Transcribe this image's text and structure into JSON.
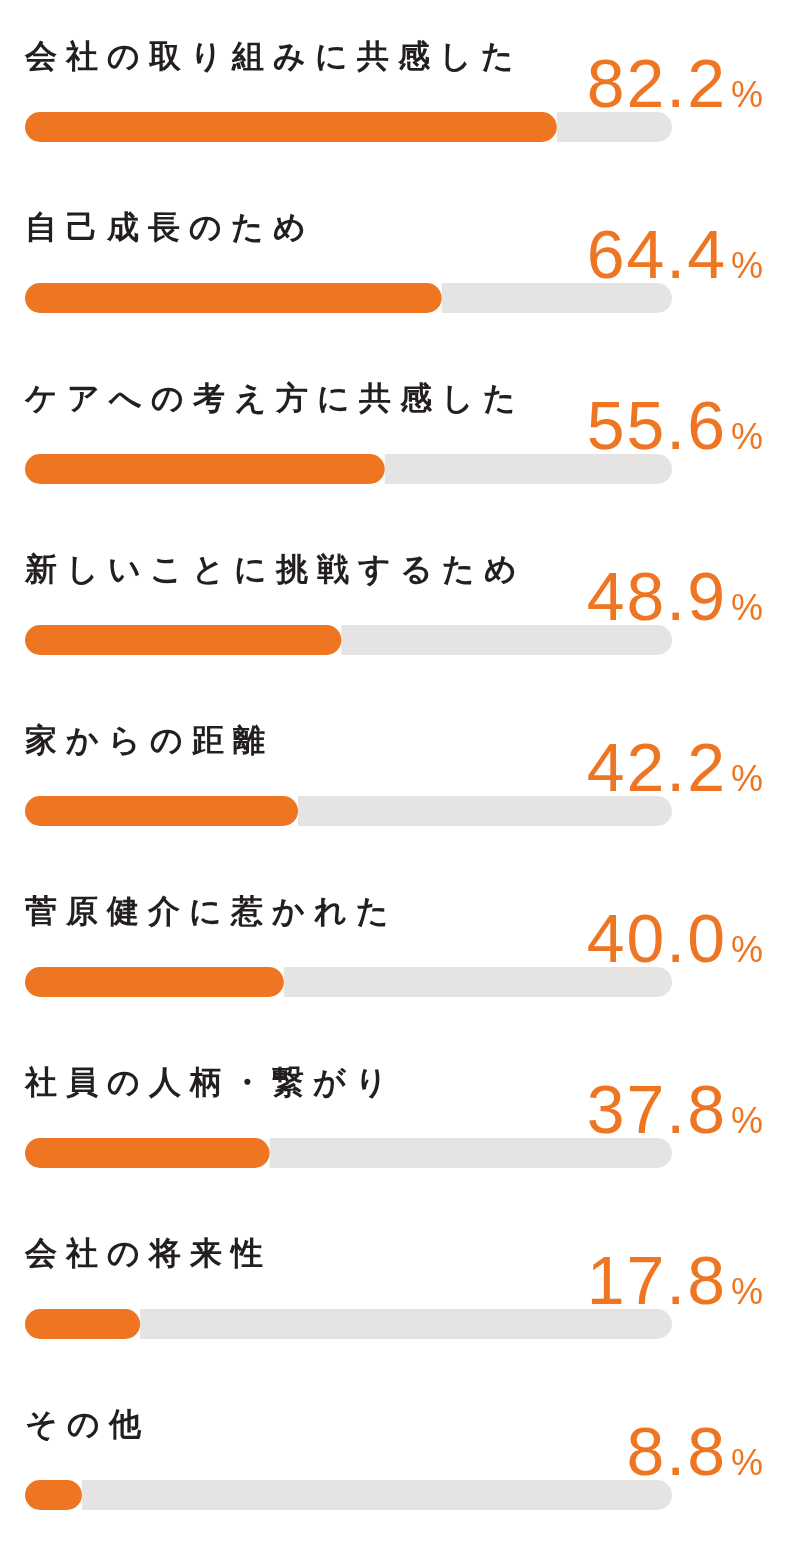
{
  "chart_data": {
    "type": "bar",
    "orientation": "horizontal",
    "categories": [
      "会社の取り組みに共感した",
      "自己成長のため",
      "ケアへの考え方に共感した",
      "新しいことに挑戦するため",
      "家からの距離",
      "菅原健介に惹かれた",
      "社員の人柄・繋がり",
      "会社の将来性",
      "その他"
    ],
    "values": [
      82.2,
      64.4,
      55.6,
      48.9,
      42.2,
      40.0,
      37.8,
      17.8,
      8.8
    ],
    "value_labels": [
      "82.2%",
      "64.4%",
      "55.6%",
      "48.9%",
      "42.2%",
      "40.0%",
      "37.8%",
      "17.8%",
      "8.8%"
    ],
    "color": "#ee7623",
    "xlim": [
      0,
      100
    ]
  }
}
